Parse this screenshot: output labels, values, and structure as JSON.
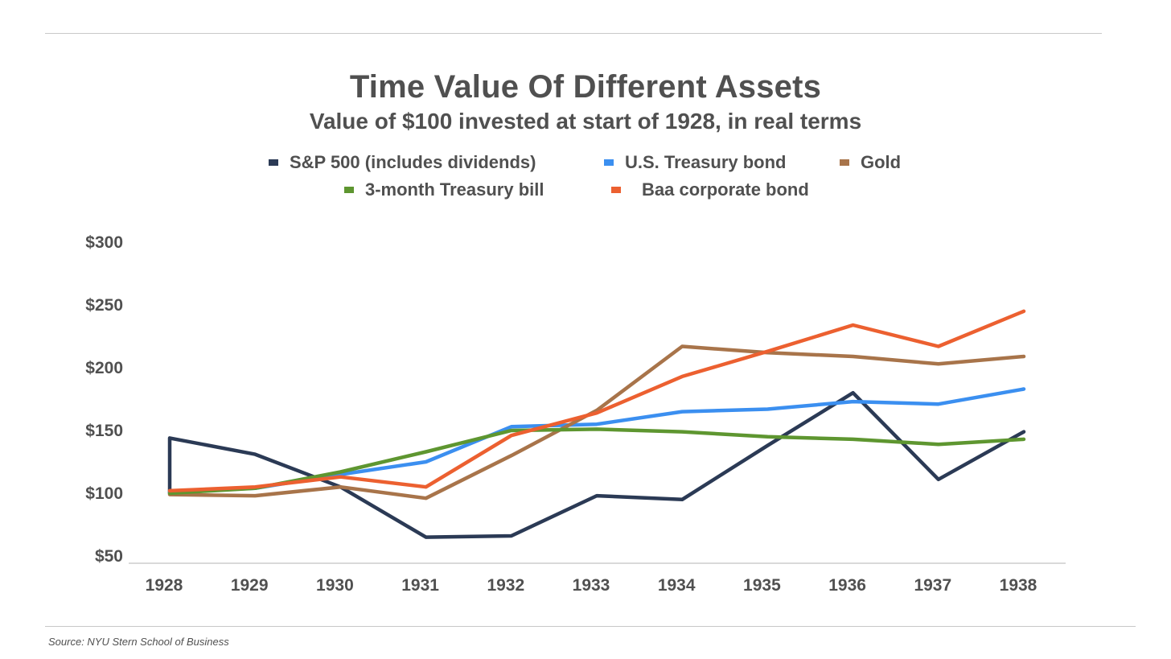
{
  "chart_data": {
    "type": "line",
    "title": "Time Value Of Different Assets",
    "subtitle": "Value of $100 invested at start of 1928, in real terms",
    "xlabel": "",
    "ylabel": "",
    "categories": [
      "1928",
      "1929",
      "1930",
      "1931",
      "1932",
      "1933",
      "1934",
      "1935",
      "1936",
      "1937",
      "1938"
    ],
    "y_ticks": [
      50,
      100,
      150,
      200,
      250,
      300
    ],
    "y_tick_labels": [
      "$50",
      "$100",
      "$150",
      "$200",
      "$250",
      "$300"
    ],
    "ylim": [
      50,
      300
    ],
    "grid": false,
    "legend_position": "top",
    "series": [
      {
        "name": "S&P 500 (includes dividends)",
        "color": "#2b3a55",
        "start": 100,
        "values": [
          144,
          131,
          105,
          65,
          66,
          98,
          95,
          138,
          180,
          111,
          149
        ]
      },
      {
        "name": "U.S. Treasury bond",
        "color": "#3b8ff0",
        "values": [
          101,
          104,
          115,
          125,
          153,
          155,
          165,
          167,
          173,
          171,
          183
        ]
      },
      {
        "name": "Gold",
        "color": "#a8744a",
        "values": [
          99,
          98,
          105,
          96,
          130,
          166,
          217,
          212,
          209,
          203,
          209
        ]
      },
      {
        "name": "3-month Treasury bill",
        "color": "#5e9630",
        "values": [
          100,
          104,
          117,
          133,
          150,
          151,
          149,
          145,
          143,
          139,
          143
        ]
      },
      {
        "name": "Baa corporate bond",
        "color": "#ec6030",
        "values": [
          102,
          105,
          113,
          105,
          146,
          164,
          193,
          213,
          234,
          217,
          245
        ]
      }
    ],
    "source": "Source: NYU Stern School of Business"
  }
}
